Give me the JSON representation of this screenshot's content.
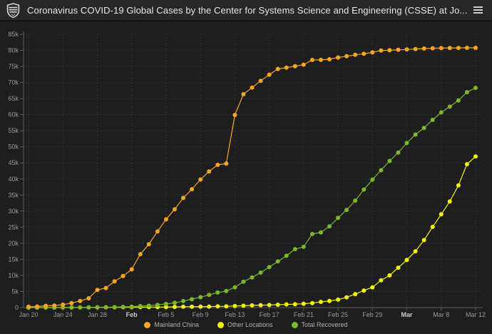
{
  "header": {
    "title": "Coronavirus COVID-19 Global Cases by the Center for Systems Science and Engineering (CSSE) at Jo...",
    "logo_icon": "johns-hopkins-shield-icon",
    "menu_icon": "hamburger-menu-icon"
  },
  "ui_colors": {
    "header_bg": "#272727",
    "page_bg": "#1e1e1e",
    "grid": "#3d3d3d",
    "axis": "#5d5d5d",
    "tick_text": "#9a9a9a",
    "tick_text_bold": "#cdcdcd",
    "legend_text": "#b8b2a6"
  },
  "chart_data": {
    "type": "line",
    "title": "",
    "xlabel": "",
    "ylabel": "",
    "grid": true,
    "legend_position": "bottom",
    "ylim": [
      0,
      85000
    ],
    "ytick_step": 5000,
    "ytick_labels": [
      "0",
      "5k",
      "10k",
      "15k",
      "20k",
      "25k",
      "30k",
      "35k",
      "40k",
      "45k",
      "50k",
      "55k",
      "60k",
      "65k",
      "70k",
      "75k",
      "80k",
      "85k"
    ],
    "x": [
      "Jan 20",
      "Jan 21",
      "Jan 22",
      "Jan 23",
      "Jan 24",
      "Jan 25",
      "Jan 26",
      "Jan 27",
      "Jan 28",
      "Jan 29",
      "Jan 30",
      "Jan 31",
      "Feb 1",
      "Feb 2",
      "Feb 3",
      "Feb 4",
      "Feb 5",
      "Feb 6",
      "Feb 7",
      "Feb 8",
      "Feb 9",
      "Feb 10",
      "Feb 11",
      "Feb 12",
      "Feb 13",
      "Feb 14",
      "Feb 15",
      "Feb 16",
      "Feb 17",
      "Feb 18",
      "Feb 19",
      "Feb 20",
      "Feb 21",
      "Feb 22",
      "Feb 23",
      "Feb 24",
      "Feb 25",
      "Feb 26",
      "Feb 27",
      "Feb 28",
      "Feb 29",
      "Mar 1",
      "Mar 2",
      "Mar 3",
      "Mar 4",
      "Mar 5",
      "Mar 6",
      "Mar 7",
      "Mar 8",
      "Mar 9",
      "Mar 10",
      "Mar 11",
      "Mar 12"
    ],
    "xticks": [
      {
        "day": 0,
        "label": "Jan 20",
        "bold": false
      },
      {
        "day": 4,
        "label": "Jan 24",
        "bold": false
      },
      {
        "day": 8,
        "label": "Jan 28",
        "bold": false
      },
      {
        "day": 12,
        "label": "Feb",
        "bold": true
      },
      {
        "day": 16,
        "label": "Feb 5",
        "bold": false
      },
      {
        "day": 20,
        "label": "Feb 9",
        "bold": false
      },
      {
        "day": 24,
        "label": "Feb 13",
        "bold": false
      },
      {
        "day": 28,
        "label": "Feb 17",
        "bold": false
      },
      {
        "day": 32,
        "label": "Feb 21",
        "bold": false
      },
      {
        "day": 36,
        "label": "Feb 25",
        "bold": false
      },
      {
        "day": 40,
        "label": "Feb 29",
        "bold": false
      },
      {
        "day": 44,
        "label": "Mar",
        "bold": true
      },
      {
        "day": 48,
        "label": "Mar 8",
        "bold": false
      },
      {
        "day": 52,
        "label": "Mar 12",
        "bold": false
      }
    ],
    "series": [
      {
        "name": "Mainland China",
        "color": "#f5a623",
        "values": [
          278,
          326,
          548,
          643,
          920,
          1406,
          2075,
          2877,
          5509,
          6087,
          8141,
          9802,
          11891,
          16630,
          19716,
          23707,
          27440,
          30587,
          34110,
          36814,
          39829,
          42354,
          44386,
          44759,
          59895,
          66358,
          68413,
          70513,
          72434,
          74211,
          74619,
          75077,
          75550,
          77001,
          77022,
          77241,
          77754,
          78166,
          78600,
          78928,
          79356,
          79932,
          80026,
          80151,
          80270,
          80409,
          80552,
          80651,
          80695,
          80735,
          80754,
          80778,
          80793
        ]
      },
      {
        "name": "Other Locations",
        "color": "#f2f20c",
        "values": [
          4,
          6,
          7,
          11,
          21,
          28,
          43,
          50,
          69,
          79,
          86,
          118,
          132,
          146,
          153,
          169,
          186,
          211,
          270,
          288,
          307,
          319,
          381,
          395,
          518,
          583,
          683,
          765,
          804,
          879,
          1000,
          1076,
          1200,
          1403,
          1769,
          2069,
          2459,
          3200,
          4200,
          5300,
          6300,
          8500,
          10000,
          12400,
          14800,
          17500,
          21000,
          25100,
          29000,
          33000,
          38000,
          44600,
          47000
        ]
      },
      {
        "name": "Total Recovered",
        "color": "#7ab82d",
        "values": [
          25,
          25,
          28,
          30,
          36,
          39,
          52,
          61,
          107,
          126,
          143,
          222,
          284,
          472,
          623,
          852,
          1124,
          1487,
          2011,
          2616,
          3244,
          3946,
          4683,
          5150,
          6295,
          8058,
          9395,
          10865,
          12583,
          14352,
          16121,
          18177,
          18890,
          22886,
          23394,
          25227,
          27905,
          30384,
          33277,
          36711,
          39782,
          42716,
          45602,
          48228,
          51170,
          53796,
          55865,
          58358,
          60694,
          62494,
          64404,
          67003,
          68324
        ]
      }
    ]
  }
}
